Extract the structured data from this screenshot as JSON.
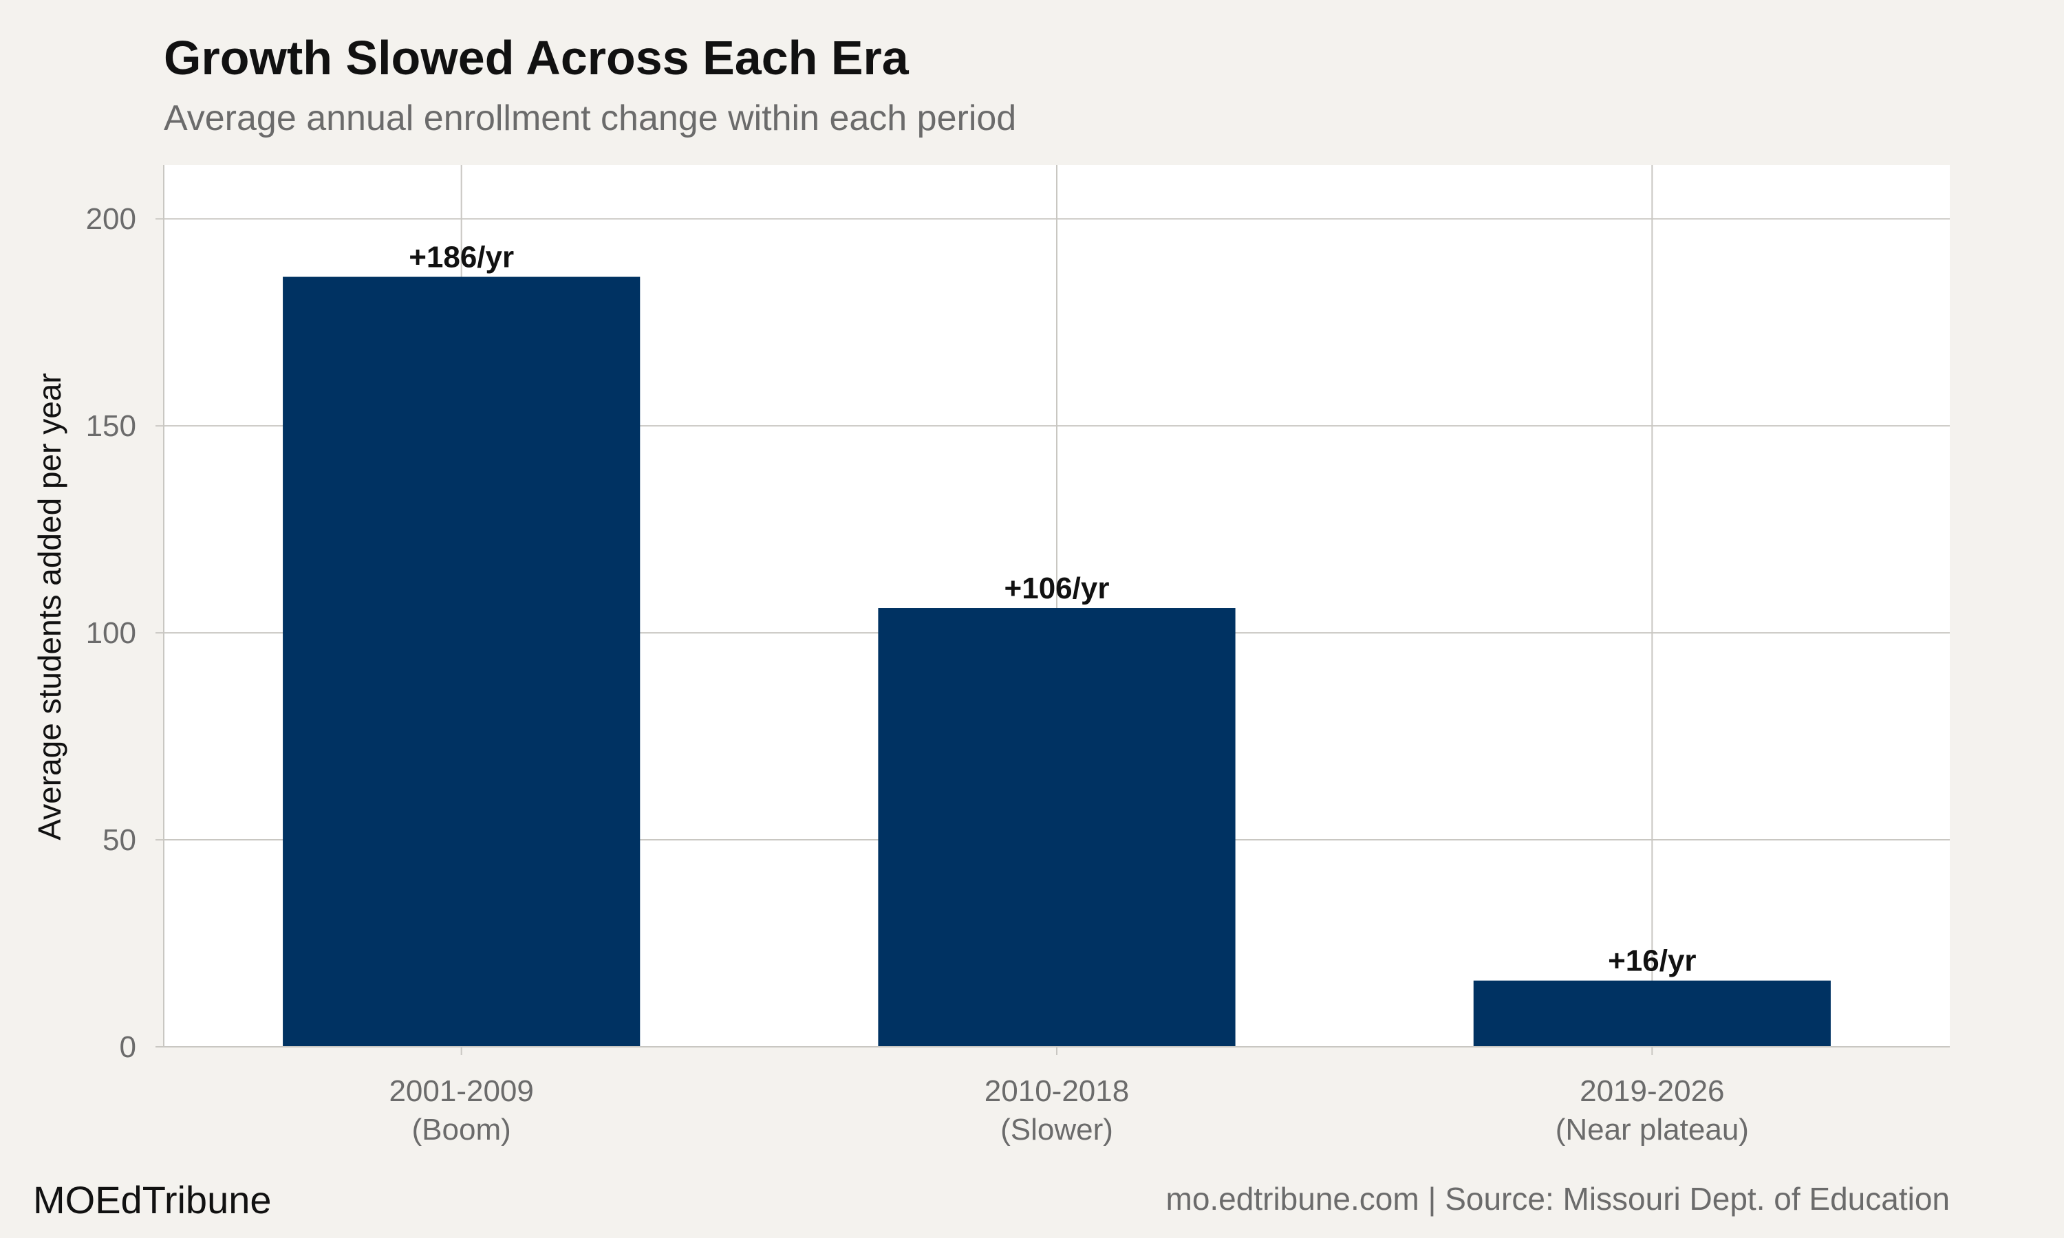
{
  "header": {
    "title": "Growth Slowed Across Each Era",
    "subtitle": "Average annual enrollment change within each period"
  },
  "footer": {
    "brand": "MOEdTribune",
    "source": "mo.edtribune.com | Source: Missouri Dept. of Education"
  },
  "colors": {
    "bar": "#003262",
    "grid": "#c9c7c2",
    "panel": "#ffffff",
    "background": "#f4f2ee",
    "axis_text": "#6b6b6b",
    "label_text": "#111111"
  },
  "chart_data": {
    "type": "bar",
    "categories": [
      [
        "2001-2009",
        "(Boom)"
      ],
      [
        "2010-2018",
        "(Slower)"
      ],
      [
        "2019-2026",
        "(Near plateau)"
      ]
    ],
    "values": [
      186,
      106,
      16
    ],
    "data_labels": [
      "+186/yr",
      "+106/yr",
      "+16/yr"
    ],
    "ylabel": "Average students added per year",
    "xlabel": "",
    "ylim": [
      0,
      213
    ],
    "yticks": [
      0,
      50,
      100,
      150,
      200
    ],
    "grid": true
  }
}
